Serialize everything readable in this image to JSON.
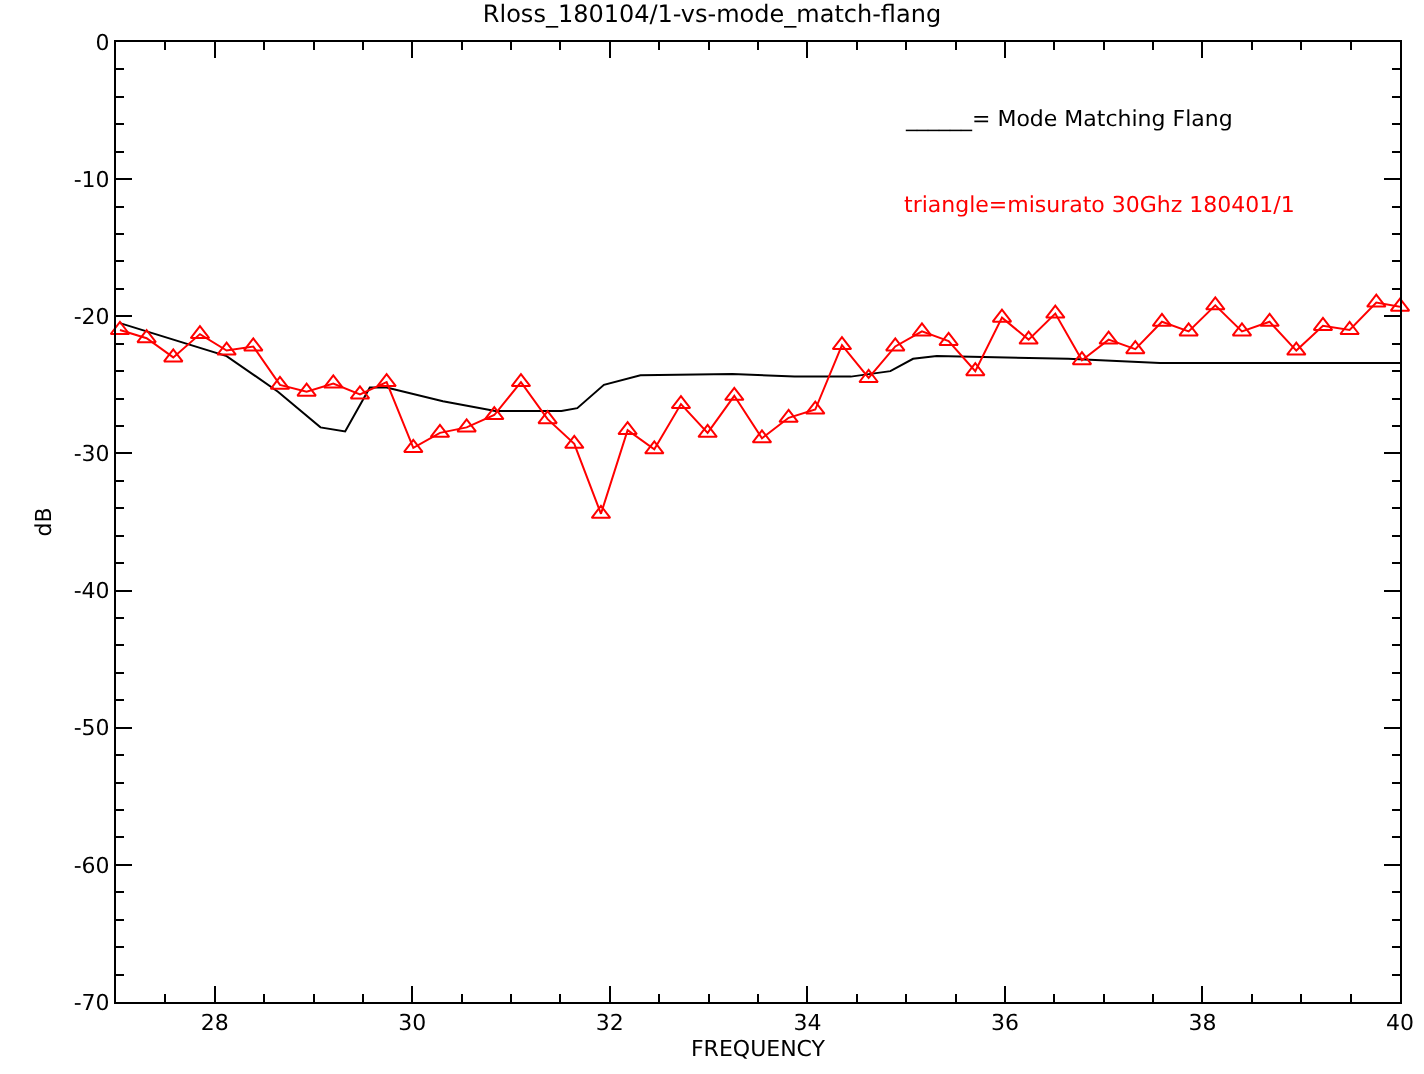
{
  "chart_data": {
    "type": "line",
    "title": "Rloss_180104/1-vs-mode_match-flang",
    "xlabel": "FREQUENCY",
    "ylabel": "dB",
    "annotations": [
      "______= Mode Matching Flang",
      "triangle=misurato 30Ghz 180401/1"
    ],
    "xlim": [
      27,
      40
    ],
    "xticks": [
      28,
      30,
      32,
      34,
      36,
      38,
      40
    ],
    "ylim": [
      -70,
      0
    ],
    "yticks": [
      -70,
      -60,
      -50,
      -40,
      -30,
      -20,
      -10,
      0
    ],
    "grid": false,
    "series": [
      {
        "color": "#000000",
        "marker": "none",
        "x": [
          27.04,
          28.12,
          28.64,
          29.07,
          29.32,
          29.57,
          29.74,
          30.31,
          30.84,
          31.51,
          31.67,
          31.94,
          32.31,
          33.24,
          33.87,
          34.44,
          34.84,
          35.07,
          35.31,
          36.64,
          37.57,
          40
        ],
        "values": [
          -20.5,
          -22.9,
          -25.5,
          -28.1,
          -28.4,
          -25.2,
          -25.2,
          -26.2,
          -26.9,
          -26.9,
          -26.7,
          -25.0,
          -24.3,
          -24.2,
          -24.4,
          -24.4,
          -24.0,
          -23.1,
          -22.9,
          -23.1,
          -23.4,
          -23.4
        ]
      },
      {
        "color": "#ff0000",
        "marker": "triangle",
        "x": [
          27.04,
          27.31,
          27.58,
          27.85,
          28.12,
          28.39,
          28.66,
          28.93,
          29.2,
          29.47,
          29.74,
          30.01,
          30.28,
          30.55,
          30.83,
          31.1,
          31.37,
          31.64,
          31.91,
          32.18,
          32.45,
          32.72,
          32.99,
          33.26,
          33.54,
          33.81,
          34.08,
          34.35,
          34.62,
          34.89,
          35.16,
          35.43,
          35.7,
          35.97,
          36.24,
          36.51,
          36.78,
          37.05,
          37.32,
          37.59,
          37.86,
          38.13,
          38.4,
          38.68,
          38.95,
          39.22,
          39.49,
          39.76,
          40
        ],
        "values": [
          -21.0,
          -21.6,
          -23.0,
          -21.3,
          -22.5,
          -22.2,
          -25.0,
          -25.5,
          -24.9,
          -25.7,
          -24.8,
          -29.6,
          -28.5,
          -28.1,
          -27.2,
          -24.8,
          -27.5,
          -29.3,
          -34.4,
          -28.3,
          -29.7,
          -26.4,
          -28.5,
          -25.8,
          -28.9,
          -27.4,
          -26.8,
          -22.1,
          -24.5,
          -22.2,
          -21.1,
          -21.8,
          -24.0,
          -20.1,
          -21.7,
          -19.8,
          -23.2,
          -21.7,
          -22.4,
          -20.4,
          -21.1,
          -19.2,
          -21.1,
          -20.4,
          -22.5,
          -20.7,
          -21.0,
          -19.0,
          -19.3
        ]
      }
    ]
  }
}
